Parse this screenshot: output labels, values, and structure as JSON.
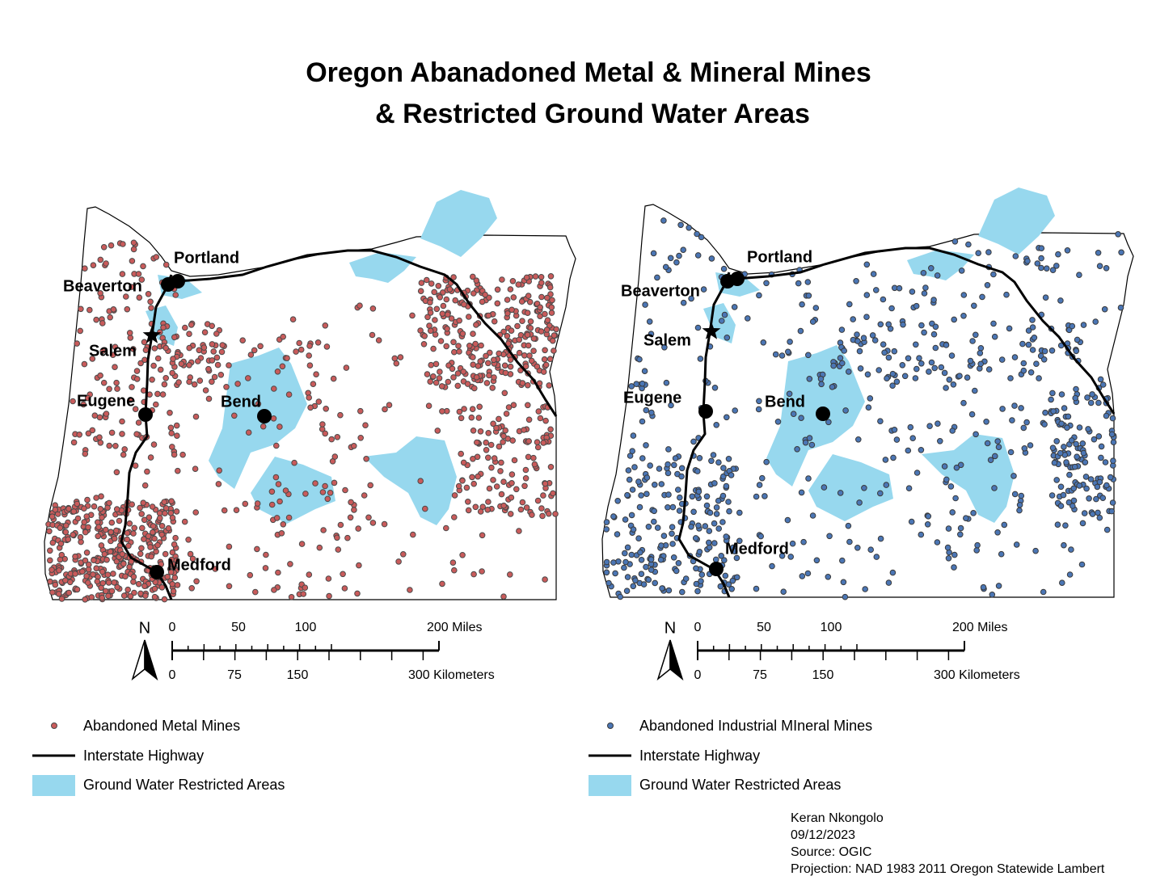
{
  "title": [
    "Oregon Abanadoned Metal & Mineral Mines",
    "& Restricted Ground Water Areas"
  ],
  "maps": [
    {
      "cities": [
        "Portland",
        "Beaverton",
        "Salem",
        "Eugene",
        "Bend",
        "Medford"
      ],
      "north": "N",
      "scale_miles": [
        "0",
        "50",
        "100",
        "200 Miles"
      ],
      "scale_km": [
        "0",
        "75",
        "150",
        "300 Kilometers"
      ],
      "legend": [
        "Abandoned Metal Mines",
        "Interstate Highway",
        "Ground Water Restricted Areas"
      ]
    },
    {
      "cities": [
        "Portland",
        "Beaverton",
        "Salem",
        "Eugene",
        "Bend",
        "Medford"
      ],
      "north": "N",
      "scale_miles": [
        "0",
        "50",
        "100",
        "200 Miles"
      ],
      "scale_km": [
        "0",
        "75",
        "150",
        "300 Kilometers"
      ],
      "legend": [
        "Abandoned Industrial MIneral Mines",
        "Interstate Highway",
        "Ground Water Restricted Areas"
      ]
    }
  ],
  "credits": [
    "Keran Nkongolo",
    "09/12/2023",
    "Source: OGIC",
    "Projection: NAD 1983 2011 Oregon Statewide Lambert"
  ]
}
